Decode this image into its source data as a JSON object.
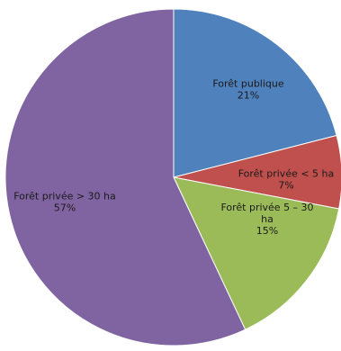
{
  "chart_data": {
    "type": "pie",
    "title": "",
    "slices": [
      {
        "label_lines": [
          "Forêt publique"
        ],
        "percent_label": "21%",
        "value": 21,
        "color": "#4f81bd"
      },
      {
        "label_lines": [
          "Forêt privée  < 5 ha"
        ],
        "percent_label": "7%",
        "value": 7,
        "color": "#c0504d"
      },
      {
        "label_lines": [
          "Forêt privée 5 – 30",
          "ha"
        ],
        "percent_label": "15%",
        "value": 15,
        "color": "#9bbb59"
      },
      {
        "label_lines": [
          "Forêt privée > 30 ha"
        ],
        "percent_label": "57%",
        "value": 57,
        "color": "#8064a2"
      }
    ],
    "start_angle_deg": 0,
    "direction": "clockwise",
    "legend": "none",
    "data_labels": "inside"
  }
}
